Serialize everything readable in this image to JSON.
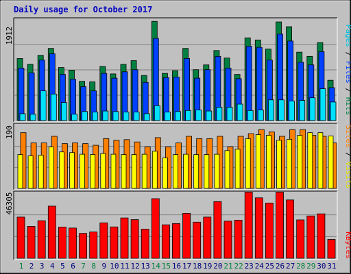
{
  "title": "Daily usage for October 2017",
  "panels": {
    "top": {
      "max_label": "1912",
      "side_label": [
        "Pages",
        "Files",
        "Hits"
      ]
    },
    "middle": {
      "max_label": "190",
      "side_label": [
        "Sites",
        "Visits"
      ]
    },
    "bottom": {
      "max_label": "46305",
      "side_label": [
        "KBytes"
      ]
    }
  },
  "colors": {
    "background": "#c0c0c0",
    "hits": "#008040",
    "files": "#0040ff",
    "pages": "#00e0ff",
    "visits": "#ffff00",
    "sites": "#ff8000",
    "kbytes": "#ff0000",
    "title": "#0000c0",
    "weekday_label": "#000080",
    "weekend_label": "#008040"
  },
  "chart_data": [
    {
      "type": "bar",
      "title": "Daily usage for October 2017",
      "categories": [
        "1",
        "2",
        "3",
        "4",
        "5",
        "6",
        "7",
        "8",
        "9",
        "10",
        "11",
        "12",
        "13",
        "14",
        "15",
        "16",
        "17",
        "18",
        "19",
        "20",
        "21",
        "22",
        "23",
        "24",
        "25",
        "26",
        "27",
        "28",
        "29",
        "30",
        "31"
      ],
      "weekend_days": [
        "1",
        "7",
        "8",
        "14",
        "15",
        "21",
        "22",
        "28",
        "29"
      ],
      "ylim": [
        0,
        1912
      ],
      "series": [
        {
          "name": "Hits",
          "values": [
            1170,
            1060,
            1230,
            1360,
            1000,
            950,
            740,
            730,
            1020,
            880,
            1060,
            1130,
            850,
            1870,
            890,
            940,
            1360,
            960,
            1050,
            1320,
            1180,
            870,
            1560,
            1520,
            1350,
            1860,
            1770,
            1290,
            1210,
            1470,
            760
          ]
        },
        {
          "name": "Files",
          "values": [
            990,
            900,
            1140,
            1260,
            870,
            780,
            640,
            560,
            890,
            800,
            920,
            960,
            720,
            1550,
            810,
            820,
            1170,
            800,
            960,
            1210,
            990,
            790,
            1400,
            1380,
            1140,
            1630,
            1500,
            1100,
            1050,
            1300,
            620
          ]
        },
        {
          "name": "Pages",
          "values": [
            130,
            120,
            560,
            500,
            340,
            120,
            170,
            160,
            180,
            170,
            160,
            160,
            130,
            280,
            160,
            170,
            190,
            200,
            180,
            250,
            250,
            310,
            190,
            200,
            390,
            390,
            370,
            380,
            430,
            600,
            350
          ]
        }
      ]
    },
    {
      "type": "bar",
      "ylim": [
        0,
        190
      ],
      "series": [
        {
          "name": "Sites",
          "values": [
            168,
            137,
            137,
            157,
            135,
            137,
            135,
            130,
            150,
            145,
            147,
            140,
            125,
            153,
            125,
            137,
            157,
            150,
            150,
            157,
            125,
            157,
            165,
            177,
            170,
            157,
            177,
            177,
            160,
            157,
            137
          ]
        },
        {
          "name": "Visits",
          "values": [
            102,
            98,
            100,
            125,
            110,
            108,
            103,
            102,
            105,
            103,
            102,
            102,
            103,
            112,
            92,
            102,
            103,
            102,
            102,
            103,
            114,
            118,
            150,
            162,
            160,
            145,
            148,
            160,
            168,
            168,
            158
          ]
        }
      ]
    },
    {
      "type": "bar",
      "ylim": [
        0,
        46305
      ],
      "series": [
        {
          "name": "KBytes",
          "values": [
            29300,
            22700,
            26700,
            37100,
            22200,
            21500,
            17700,
            18700,
            25200,
            22300,
            28700,
            27500,
            20700,
            42400,
            23800,
            24700,
            32000,
            25700,
            29300,
            40300,
            26400,
            27100,
            47000,
            43000,
            39300,
            47000,
            41500,
            27300,
            30100,
            31600,
            13400
          ]
        }
      ]
    }
  ]
}
